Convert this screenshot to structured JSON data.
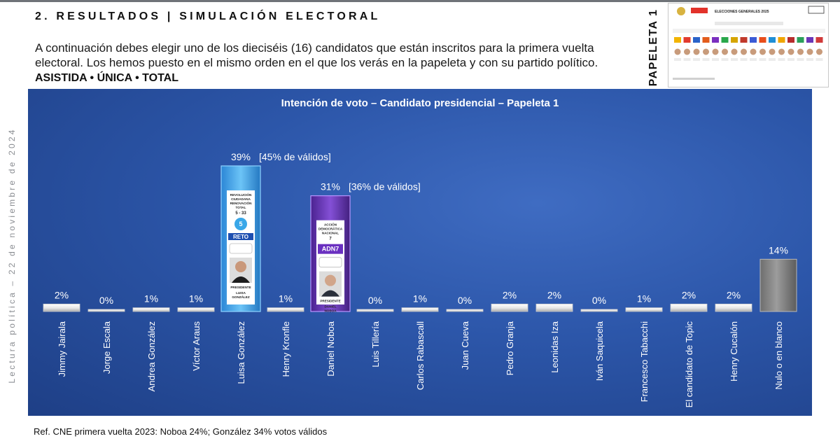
{
  "header": {
    "section_title": "2. RESULTADOS | SIMULACIÓN ELECTORAL",
    "intro": "A continuación debes elegir uno de los dieciséis (16) candidatos que están inscritos para la primera vuelta electoral. Los hemos puesto en el mismo orden en el que los verás en la papeleta y con su partido político.",
    "subtitle": "ASISTIDA • ÚNICA • TOTAL"
  },
  "side_text": "Lectura política – 22 de noviembre de 2024",
  "papeleta_label": "PAPELETA 1",
  "ballot": {
    "title": "ELECCIONES GENERALES 2025"
  },
  "footnote": "Ref. CNE primera vuelta 2023: Noboa 24%; González 34% votos válidos",
  "colors": {
    "panel": "#2c56a9",
    "bar_white": "#ffffff",
    "bar_gray": "#8c8c8c",
    "gonzalez": "#3aa0e6",
    "noboa": "#6a36b7"
  },
  "chart_data": {
    "type": "bar",
    "title": "Intención de voto – Candidato presidencial – Papeleta 1",
    "categories": [
      "Jimmy Jairala",
      "Jorge Escala",
      "Andrea González",
      "Víctor Araus",
      "Luisa González",
      "Henry Kronfle",
      "Daniel Noboa",
      "Luis Tillería",
      "Carlos Rabascall",
      "Juan Cueva",
      "Pedro Granja",
      "Leonidas Iza",
      "Iván Saquicela",
      "Francesco Tabacchi",
      "El candidato de Topic",
      "Henry Cucalón",
      "Nulo o en blanco"
    ],
    "values": [
      2,
      0,
      1,
      1,
      39,
      1,
      31,
      0,
      1,
      0,
      2,
      2,
      0,
      1,
      2,
      2,
      14
    ],
    "value_labels": [
      "2%",
      "0%",
      "1%",
      "1%",
      "39%",
      "1%",
      "31%",
      "0%",
      "1%",
      "0%",
      "2%",
      "2%",
      "0%",
      "1%",
      "2%",
      "2%",
      "14%"
    ],
    "annotations": [
      {
        "index": 4,
        "text": "[45% de válidos]"
      },
      {
        "index": 6,
        "text": "[36% de válidos]"
      }
    ],
    "ballot_cards": [
      {
        "index": 4,
        "party": "REVOLUCIÓN CIUDADANA RENOVACIÓN TOTAL",
        "list": "5 - 33",
        "logo": "RETO",
        "role": "PRESIDENTE",
        "name": "LUISA GONZÁLEZ"
      },
      {
        "index": 6,
        "party": "ACCIÓN DEMOCRÁTICA NACIONAL",
        "list": "7",
        "logo": "ADN7",
        "role": "PRESIDENTE",
        "name": "DANIEL NOBOA"
      }
    ],
    "ylim": [
      0,
      45
    ],
    "grid": false,
    "legend": "none"
  }
}
